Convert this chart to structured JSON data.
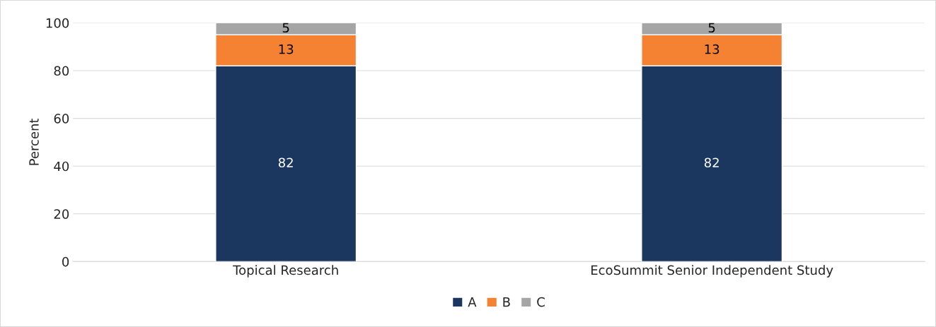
{
  "chart_data": {
    "type": "bar",
    "stacked": true,
    "ylabel": "Percent",
    "categories": [
      "Topical Research",
      "EcoSummit Senior Independent Study"
    ],
    "series": [
      {
        "name": "A",
        "color": "#1b3760",
        "values": [
          82,
          82
        ]
      },
      {
        "name": "B",
        "color": "#f58232",
        "values": [
          13,
          13
        ]
      },
      {
        "name": "C",
        "color": "#a5a5a5",
        "values": [
          5,
          5
        ]
      }
    ],
    "ylim": [
      0,
      100
    ],
    "yticks": [
      0,
      20,
      40,
      60,
      80,
      100
    ],
    "grid": "y",
    "legend": "bottom",
    "data_labels": true
  }
}
